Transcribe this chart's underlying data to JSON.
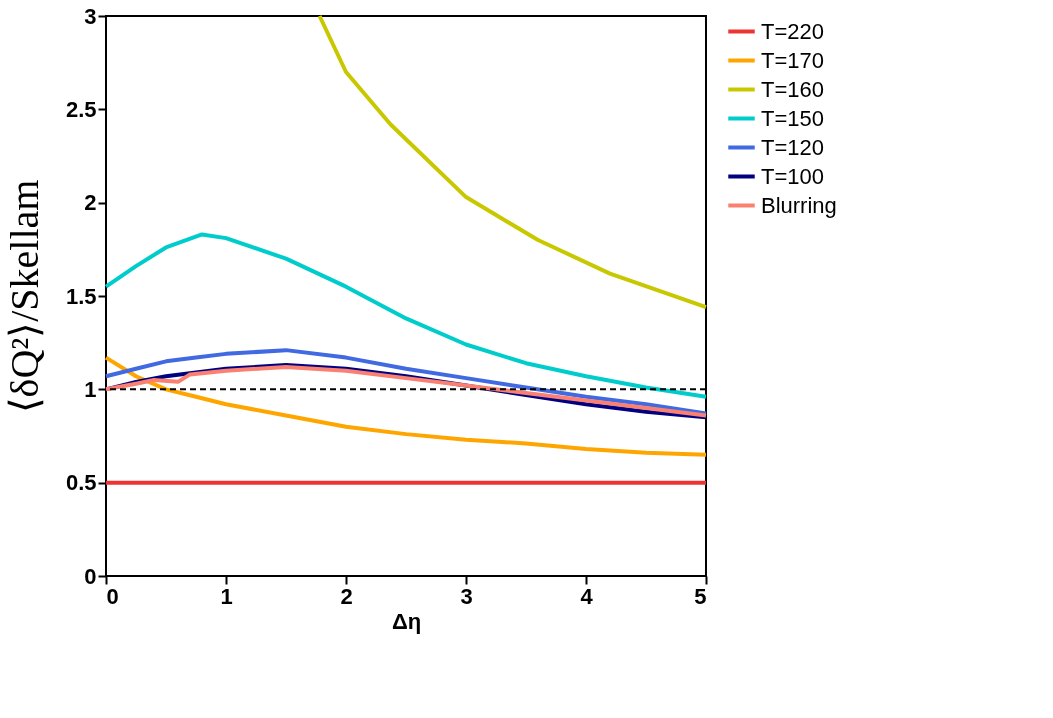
{
  "chart_data": {
    "type": "line",
    "xlabel": "Δη",
    "ylabel": "⟨δQ²⟩/Skellam",
    "xlim": [
      0,
      5
    ],
    "ylim": [
      0,
      3
    ],
    "xticks": [
      0,
      1,
      2,
      3,
      4,
      5
    ],
    "yticks": [
      0,
      0.5,
      1,
      1.5,
      2,
      2.5,
      3
    ],
    "grid": false,
    "legend": "right",
    "line_style": "solid",
    "marker": "none",
    "x": [
      0,
      0.25,
      0.5,
      0.75,
      1,
      1.5,
      2,
      2.5,
      3,
      3.5,
      4,
      4.5,
      5
    ],
    "series": [
      {
        "name": "T=220",
        "color": "#ee3333",
        "values": [
          0.5,
          0.5,
          0.5,
          0.5,
          0.5,
          0.5,
          0.5,
          0.5,
          0.5,
          0.5,
          0.5,
          0.5,
          0.5
        ]
      },
      {
        "name": "T=170",
        "color": "#ffa500",
        "values": [
          1.17,
          1.07,
          1.0,
          0.96,
          0.92,
          0.86,
          0.8,
          0.76,
          0.73,
          0.71,
          0.68,
          0.66,
          0.65
        ]
      },
      {
        "name": "T=160",
        "color": "#c8c800",
        "x": [
          1.78,
          2,
          2.37,
          3,
          3.6,
          4.2,
          5
        ],
        "values": [
          3.0,
          2.7,
          2.42,
          2.03,
          1.8,
          1.62,
          1.44
        ]
      },
      {
        "name": "T=150",
        "color": "#00cccc",
        "x": [
          0,
          0.25,
          0.5,
          0.8,
          1,
          1.5,
          2,
          2.5,
          3,
          3.5,
          4,
          4.5,
          5
        ],
        "values": [
          1.55,
          1.66,
          1.76,
          1.83,
          1.81,
          1.7,
          1.55,
          1.38,
          1.24,
          1.14,
          1.07,
          1.01,
          0.96
        ]
      },
      {
        "name": "T=120",
        "color": "#4169e1",
        "values": [
          1.07,
          1.11,
          1.15,
          1.17,
          1.19,
          1.21,
          1.17,
          1.11,
          1.06,
          1.01,
          0.96,
          0.92,
          0.87
        ]
      },
      {
        "name": "T=100",
        "color": "#000080",
        "values": [
          1.0,
          1.04,
          1.07,
          1.09,
          1.11,
          1.13,
          1.11,
          1.07,
          1.02,
          0.97,
          0.92,
          0.88,
          0.85
        ]
      },
      {
        "name": "Blurring",
        "color": "#fa8072",
        "x": [
          0,
          0.25,
          0.4,
          0.6,
          0.7,
          1,
          1.5,
          2,
          2.5,
          3,
          3.5,
          4,
          4.5,
          5
        ],
        "values": [
          1.0,
          1.03,
          1.05,
          1.04,
          1.08,
          1.1,
          1.12,
          1.1,
          1.06,
          1.02,
          0.98,
          0.94,
          0.9,
          0.86
        ]
      }
    ],
    "ref_lines": [
      {
        "axis": "y",
        "value": 1,
        "color": "#000000",
        "line_style": "dashed"
      }
    ]
  }
}
